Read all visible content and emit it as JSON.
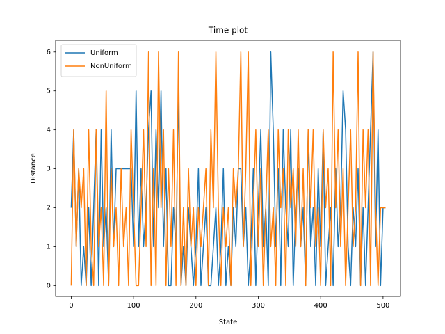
{
  "chart_data": {
    "type": "line",
    "title": "Time plot",
    "xlabel": "State",
    "ylabel": "Distance",
    "x": [
      0,
      4,
      8,
      12,
      16,
      20,
      24,
      28,
      32,
      36,
      40,
      44,
      48,
      52,
      56,
      60,
      64,
      68,
      72,
      76,
      80,
      84,
      88,
      92,
      96,
      100,
      104,
      108,
      112,
      116,
      120,
      124,
      128,
      132,
      136,
      140,
      144,
      148,
      152,
      156,
      160,
      164,
      168,
      172,
      176,
      180,
      184,
      188,
      192,
      196,
      200,
      204,
      208,
      212,
      216,
      220,
      224,
      228,
      232,
      236,
      240,
      244,
      248,
      252,
      256,
      260,
      264,
      268,
      272,
      276,
      280,
      284,
      288,
      292,
      296,
      300,
      304,
      308,
      312,
      316,
      320,
      324,
      328,
      332,
      336,
      340,
      344,
      348,
      352,
      356,
      360,
      364,
      368,
      372,
      376,
      380,
      384,
      388,
      392,
      396,
      400,
      404,
      408,
      412,
      416,
      420,
      424,
      428,
      432,
      436,
      440,
      444,
      448,
      452,
      456,
      460,
      464,
      468,
      472,
      476,
      480,
      484,
      488,
      492,
      496,
      500,
      504
    ],
    "series": [
      {
        "name": "Uniform",
        "color": "#1f77b4",
        "values": [
          2,
          4,
          1,
          3,
          0,
          1,
          0,
          2,
          0,
          2,
          4,
          0,
          4,
          1,
          2,
          0,
          4,
          1,
          3,
          3,
          3,
          3,
          3,
          3,
          3,
          1,
          5,
          1,
          3,
          1,
          2,
          4,
          5,
          1,
          4,
          2,
          5,
          1,
          3,
          0,
          0,
          2,
          1,
          5,
          0,
          1,
          0,
          2,
          1,
          0,
          1,
          3,
          0,
          1,
          2,
          0,
          0,
          1,
          2,
          0,
          1,
          3,
          0,
          1,
          0,
          2,
          1,
          3,
          3,
          1,
          2,
          0,
          1,
          3,
          0,
          2,
          4,
          1,
          2,
          0,
          6,
          4,
          1,
          3,
          0,
          4,
          2,
          1,
          4,
          0,
          2,
          3,
          1,
          2,
          0,
          4,
          1,
          2,
          0,
          3,
          1,
          4,
          0,
          1,
          2,
          0,
          3,
          1,
          2,
          5,
          4,
          1,
          0,
          2,
          1,
          3,
          0,
          2,
          0,
          2,
          4,
          6,
          1,
          4,
          0,
          2,
          2
        ]
      },
      {
        "name": "NonUniform",
        "color": "#ff7f0e",
        "values": [
          0,
          4,
          1,
          3,
          2,
          3,
          0,
          4,
          1,
          0,
          4,
          1,
          2,
          0,
          5,
          0,
          3,
          1,
          2,
          0,
          3,
          1,
          2,
          0,
          4,
          2,
          0,
          0,
          2,
          4,
          1,
          6,
          0,
          3,
          0,
          6,
          2,
          4,
          0,
          3,
          1,
          4,
          0,
          6,
          0,
          2,
          0,
          3,
          1,
          2,
          0,
          2,
          1,
          2,
          3,
          0,
          4,
          2,
          6,
          2,
          0,
          2,
          1,
          2,
          0,
          3,
          2,
          3,
          6,
          1,
          3,
          6,
          0,
          2,
          4,
          1,
          3,
          0,
          2,
          4,
          1,
          2,
          0,
          4,
          2,
          3,
          0,
          4,
          2,
          3,
          1,
          4,
          1,
          3,
          0,
          4,
          2,
          4,
          1,
          2,
          0,
          4,
          2,
          3,
          0,
          6,
          2,
          4,
          1,
          3,
          0,
          2,
          4,
          1,
          2,
          6,
          0,
          4,
          2,
          4,
          0,
          6,
          2,
          0,
          2,
          2,
          2
        ]
      }
    ],
    "xlim": [
      -25,
      528
    ],
    "ylim": [
      -0.28,
      6.3
    ],
    "xticks": [
      0,
      100,
      200,
      300,
      400,
      500
    ],
    "yticks": [
      0,
      1,
      2,
      3,
      4,
      5,
      6
    ],
    "grid": false,
    "legend": "upper left"
  }
}
